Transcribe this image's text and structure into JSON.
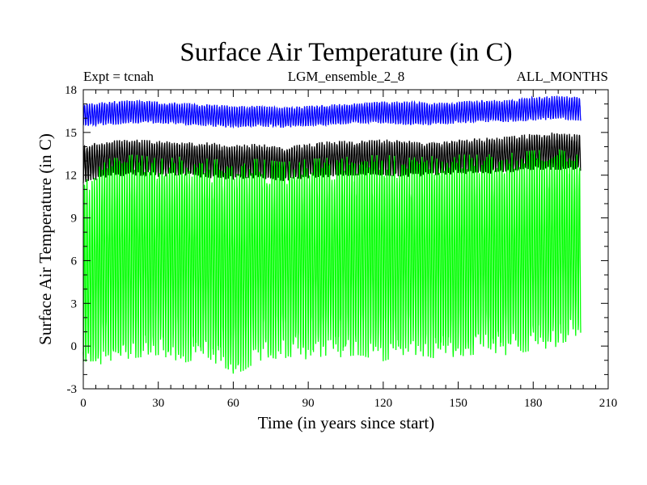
{
  "chart_data": {
    "type": "line",
    "title": "Surface Air Temperature (in C)",
    "subtitle_left": "Expt = tcnah",
    "subtitle_center": "LGM_ensemble_2_8",
    "subtitle_right": "ALL_MONTHS",
    "xlabel": "Time (in years since start)",
    "ylabel": "Surface Air Temperature (in C)",
    "xlim": [
      0,
      210
    ],
    "ylim": [
      -3,
      18
    ],
    "xticks": [
      0,
      30,
      60,
      90,
      120,
      150,
      180,
      210
    ],
    "yticks": [
      -3,
      0,
      3,
      6,
      9,
      12,
      15,
      18
    ],
    "x_range_data": [
      0,
      199
    ],
    "series": [
      {
        "name": "blue (upper) series",
        "color": "#0000ff",
        "x": [
          0,
          10,
          20,
          30,
          40,
          50,
          60,
          70,
          80,
          90,
          100,
          110,
          120,
          130,
          140,
          150,
          160,
          170,
          180,
          190,
          199
        ],
        "min": [
          15.5,
          15.6,
          15.7,
          15.7,
          15.6,
          15.5,
          15.4,
          15.5,
          15.4,
          15.5,
          15.6,
          15.7,
          15.7,
          15.6,
          15.6,
          15.7,
          15.8,
          15.8,
          15.9,
          16.0,
          15.9
        ],
        "max": [
          16.9,
          17.1,
          17.2,
          17.1,
          17.0,
          16.9,
          16.8,
          16.8,
          16.7,
          16.8,
          16.9,
          17.0,
          17.1,
          17.1,
          17.0,
          17.1,
          17.2,
          17.2,
          17.4,
          17.5,
          17.4
        ]
      },
      {
        "name": "black (middle) series",
        "color": "#000000",
        "x": [
          0,
          10,
          20,
          30,
          40,
          50,
          60,
          70,
          80,
          90,
          100,
          110,
          120,
          130,
          140,
          150,
          160,
          170,
          180,
          190,
          199
        ],
        "min": [
          11.5,
          12.0,
          12.1,
          12.0,
          12.1,
          11.9,
          11.8,
          11.9,
          11.7,
          11.9,
          12.0,
          12.1,
          12.1,
          12.0,
          12.1,
          12.2,
          12.2,
          12.3,
          12.5,
          12.5,
          12.4
        ],
        "max": [
          14.0,
          14.3,
          14.4,
          14.3,
          14.2,
          14.2,
          14.0,
          14.1,
          13.9,
          14.1,
          14.3,
          14.3,
          14.4,
          14.3,
          14.2,
          14.4,
          14.5,
          14.6,
          14.8,
          14.9,
          14.7
        ]
      },
      {
        "name": "green (lower) series",
        "color": "#00ff00",
        "x": [
          0,
          10,
          20,
          30,
          40,
          50,
          60,
          70,
          80,
          90,
          100,
          110,
          120,
          130,
          140,
          150,
          160,
          170,
          180,
          190,
          199
        ],
        "min": [
          -1.2,
          -0.4,
          -0.2,
          0.0,
          -0.5,
          -0.3,
          -1.5,
          -0.4,
          -0.2,
          -0.3,
          -0.2,
          0.0,
          -0.4,
          0.1,
          -0.2,
          -0.1,
          0.1,
          0.0,
          0.3,
          0.6,
          1.5
        ],
        "max": [
          11.0,
          12.5,
          12.8,
          12.6,
          12.7,
          12.5,
          12.4,
          12.5,
          12.3,
          12.5,
          12.6,
          12.7,
          12.8,
          12.6,
          12.7,
          12.8,
          12.8,
          12.9,
          13.1,
          13.2,
          12.8
        ]
      }
    ]
  }
}
